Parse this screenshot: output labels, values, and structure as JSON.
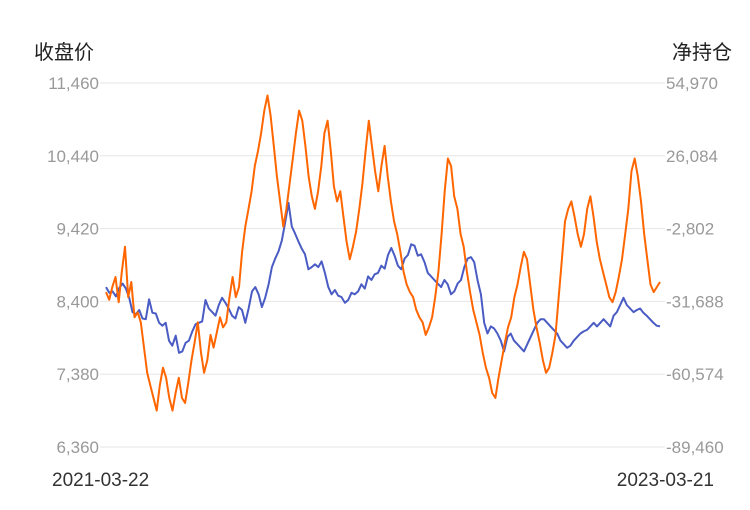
{
  "chart_data": {
    "type": "line",
    "left_axis_title": "收盘价",
    "right_axis_title": "净持仓",
    "date_start": "2021-03-22",
    "date_end": "2023-03-21",
    "left_ticks": [
      "11,460",
      "10,440",
      "9,420",
      "8,400",
      "7,380",
      "6,360"
    ],
    "right_ticks": [
      "54,970",
      "26,084",
      "-2,802",
      "-31,688",
      "-60,574",
      "-89,460"
    ],
    "left_range": [
      6360,
      11460
    ],
    "right_range": [
      -89460,
      54970
    ],
    "grid": true,
    "colors": {
      "close": "#4a5cc4",
      "net_position": "#ff6600"
    },
    "series": [
      {
        "axis": "left",
        "color": "#4a5cc4",
        "values": [
          8600,
          8520,
          8540,
          8470,
          8590,
          8650,
          8580,
          8450,
          8250,
          8220,
          8280,
          8160,
          8150,
          8430,
          8240,
          8230,
          8100,
          8060,
          8100,
          7850,
          7780,
          7920,
          7680,
          7700,
          7820,
          7850,
          7980,
          8080,
          8100,
          8120,
          8420,
          8300,
          8250,
          8200,
          8350,
          8450,
          8380,
          8300,
          8200,
          8160,
          8320,
          8280,
          8100,
          8300,
          8540,
          8600,
          8500,
          8320,
          8450,
          8640,
          8880,
          9000,
          9100,
          9250,
          9500,
          9780,
          9450,
          9350,
          9240,
          9140,
          9060,
          8850,
          8880,
          8920,
          8880,
          8960,
          8800,
          8600,
          8500,
          8560,
          8480,
          8460,
          8380,
          8420,
          8520,
          8500,
          8540,
          8640,
          8580,
          8750,
          8700,
          8780,
          8800,
          8900,
          8860,
          9050,
          9150,
          9040,
          8900,
          8850,
          9000,
          9050,
          9200,
          9180,
          9040,
          9060,
          8950,
          8800,
          8750,
          8700,
          8650,
          8600,
          8700,
          8640,
          8500,
          8540,
          8650,
          8700,
          8880,
          9000,
          9020,
          8950,
          8700,
          8500,
          8100,
          7950,
          8050,
          8020,
          7950,
          7850,
          7700,
          7900,
          7950,
          7850,
          7800,
          7750,
          7700,
          7800,
          7900,
          8000,
          8100,
          8150,
          8150,
          8100,
          8050,
          8000,
          7950,
          7850,
          7800,
          7750,
          7780,
          7850,
          7900,
          7950,
          7980,
          8000,
          8050,
          8100,
          8050,
          8100,
          8150,
          8100,
          8050,
          8200,
          8250,
          8350,
          8450,
          8350,
          8300,
          8250,
          8280,
          8300,
          8240,
          8200,
          8150,
          8100,
          8060,
          8050
        ]
      },
      {
        "axis": "right",
        "color": "#ff6600",
        "values": [
          -28000,
          -31000,
          -26000,
          -22000,
          -32000,
          -20000,
          -10000,
          -30000,
          -24000,
          -38000,
          -36000,
          -40000,
          -50000,
          -60000,
          -65000,
          -70000,
          -75000,
          -65000,
          -58000,
          -62000,
          -70000,
          -75000,
          -68000,
          -62000,
          -70000,
          -72000,
          -64000,
          -55000,
          -48000,
          -40000,
          -52000,
          -60000,
          -55000,
          -45000,
          -50000,
          -44000,
          -38000,
          -42000,
          -40000,
          -30000,
          -22000,
          -30000,
          -26000,
          -12000,
          -2000,
          5000,
          12000,
          22000,
          28000,
          35000,
          44000,
          50000,
          42000,
          30000,
          18000,
          8000,
          -2000,
          5000,
          15000,
          25000,
          35000,
          44000,
          40000,
          30000,
          18000,
          10000,
          5000,
          12000,
          22000,
          35000,
          40000,
          28000,
          14000,
          8000,
          12000,
          2000,
          -8000,
          -15000,
          -10000,
          -4000,
          5000,
          15000,
          28000,
          40000,
          30000,
          20000,
          12000,
          22000,
          30000,
          18000,
          8000,
          0,
          -5000,
          -12000,
          -20000,
          -25000,
          -28000,
          -30000,
          -35000,
          -38000,
          -40000,
          -45000,
          -42000,
          -38000,
          -30000,
          -20000,
          -5000,
          12000,
          25000,
          22000,
          10000,
          5000,
          -5000,
          -10000,
          -20000,
          -28000,
          -35000,
          -40000,
          -45000,
          -52000,
          -58000,
          -62000,
          -68000,
          -70000,
          -62000,
          -55000,
          -48000,
          -42000,
          -38000,
          -30000,
          -25000,
          -18000,
          -12000,
          -15000,
          -25000,
          -35000,
          -42000,
          -48000,
          -55000,
          -60000,
          -58000,
          -52000,
          -45000,
          -30000,
          -15000,
          0,
          5000,
          8000,
          2000,
          -5000,
          -10000,
          -5000,
          5000,
          10000,
          2000,
          -8000,
          -15000,
          -20000,
          -25000,
          -30000,
          -32000,
          -28000,
          -22000,
          -15000,
          -5000,
          5000,
          20000,
          25000,
          18000,
          8000,
          -5000,
          -15000,
          -25000,
          -28000,
          -26000,
          -24000
        ]
      }
    ]
  }
}
